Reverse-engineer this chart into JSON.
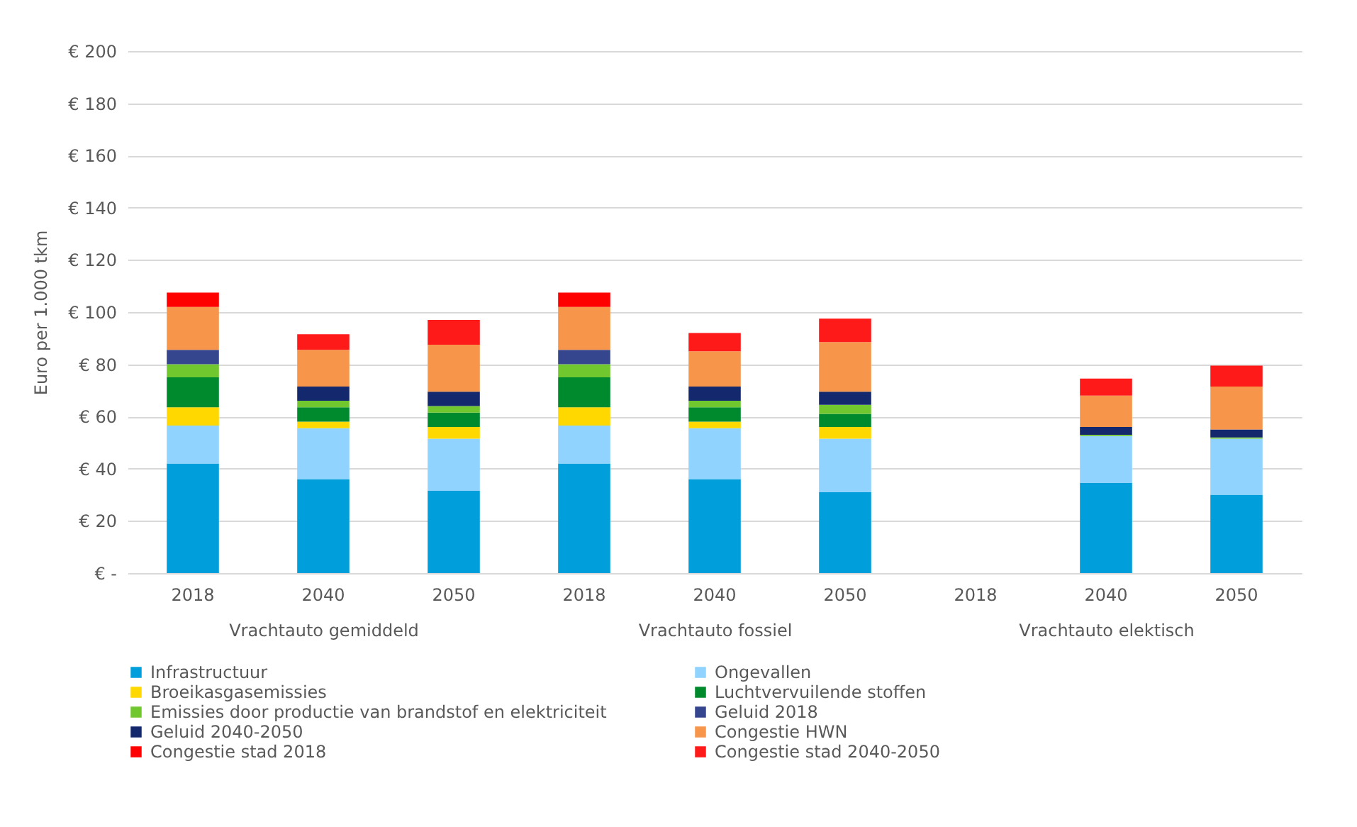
{
  "chart_data": [
    {
      "type": "bar",
      "stacked": true,
      "categories": [
        "2018",
        "2040",
        "2050"
      ],
      "xlabel": "Vrachtauto gemiddeld",
      "ylabel": "Euro per 1.000 tkm",
      "ylim": [
        0,
        200
      ],
      "yticks": [
        {
          "value": 0,
          "label": "€ -"
        },
        {
          "value": 20,
          "label": "€ 20"
        },
        {
          "value": 40,
          "label": "€ 40"
        },
        {
          "value": 60,
          "label": "€ 60"
        },
        {
          "value": 80,
          "label": "€ 80"
        },
        {
          "value": 100,
          "label": "€ 100"
        },
        {
          "value": 120,
          "label": "€ 120"
        },
        {
          "value": 140,
          "label": "€ 140"
        },
        {
          "value": 160,
          "label": "€ 160"
        },
        {
          "value": 180,
          "label": "€ 180"
        },
        {
          "value": 200,
          "label": "€ 200"
        }
      ],
      "grid": "y",
      "legend": "bottom",
      "series": [
        {
          "name": "Infrastructuur",
          "color": "#009fdb",
          "values": [
            42,
            36,
            31.5
          ]
        },
        {
          "name": "Ongevallen",
          "color": "#8fd3fe",
          "values": [
            14.5,
            19.5,
            20
          ]
        },
        {
          "name": "Broeikasgasemissies",
          "color": "#ffd800",
          "values": [
            7,
            2.5,
            4.5
          ]
        },
        {
          "name": "Luchtvervuilende stoffen",
          "color": "#008a2e",
          "values": [
            11.5,
            5.5,
            5.5
          ]
        },
        {
          "name": "Emissies door productie van brandstof en elektriciteit",
          "color": "#70c72e",
          "values": [
            5,
            2.5,
            2.5
          ]
        },
        {
          "name": "Geluid 2018",
          "color": "#35468f",
          "values": [
            5.5,
            null,
            null
          ]
        },
        {
          "name": "Geluid 2040-2050",
          "color": "#14286e",
          "values": [
            null,
            5.5,
            5.5
          ]
        },
        {
          "name": "Congestie HWN",
          "color": "#f7964a",
          "values": [
            16.5,
            14,
            18
          ]
        },
        {
          "name": "Congestie stad 2018",
          "color": "#ff0000",
          "values": [
            5.5,
            null,
            null
          ]
        },
        {
          "name": "Congestie stad 2040-2050",
          "color": "#ff1a1a",
          "values": [
            null,
            6,
            9.5
          ]
        }
      ]
    },
    {
      "type": "bar",
      "stacked": true,
      "categories": [
        "2018",
        "2040",
        "2050"
      ],
      "xlabel": "Vrachtauto fossiel",
      "ylim": [
        0,
        200
      ],
      "yticks": [
        0,
        20,
        40,
        60,
        80,
        100,
        120,
        140,
        160,
        180,
        200
      ],
      "tick_labels": "x",
      "grid": "y",
      "legend": "bottom",
      "series": [
        {
          "name": "Infrastructuur",
          "color": "#009fdb",
          "values": [
            42,
            36,
            31
          ]
        },
        {
          "name": "Ongevallen",
          "color": "#8fd3fe",
          "values": [
            14.5,
            19.5,
            20.5
          ]
        },
        {
          "name": "Broeikasgasemissies",
          "color": "#ffd800",
          "values": [
            7,
            2.5,
            4.5
          ]
        },
        {
          "name": "Luchtvervuilende stoffen",
          "color": "#008a2e",
          "values": [
            11.5,
            5.5,
            5
          ]
        },
        {
          "name": "Emissies door productie van brandstof en elektriciteit",
          "color": "#70c72e",
          "values": [
            5,
            2.5,
            3.5
          ]
        },
        {
          "name": "Geluid 2018",
          "color": "#35468f",
          "values": [
            5.5,
            null,
            null
          ]
        },
        {
          "name": "Geluid 2040-2050",
          "color": "#14286e",
          "values": [
            null,
            5.5,
            5
          ]
        },
        {
          "name": "Congestie HWN",
          "color": "#f7964a",
          "values": [
            16.5,
            13.5,
            19
          ]
        },
        {
          "name": "Congestie stad 2018",
          "color": "#ff0000",
          "values": [
            5.5,
            null,
            null
          ]
        },
        {
          "name": "Congestie stad 2040-2050",
          "color": "#ff1a1a",
          "values": [
            null,
            7,
            9
          ]
        }
      ]
    },
    {
      "type": "bar",
      "stacked": true,
      "categories": [
        "2018",
        "2040",
        "2050"
      ],
      "xlabel": "Vrachtauto elektisch",
      "ylim": [
        0,
        200
      ],
      "yticks": [
        0,
        20,
        40,
        60,
        80,
        100,
        120,
        140,
        160,
        180,
        200
      ],
      "tick_labels": "x",
      "grid": "y",
      "legend": "bottom",
      "series": [
        {
          "name": "Infrastructuur",
          "color": "#009fdb",
          "values": [
            null,
            34.5,
            30
          ]
        },
        {
          "name": "Ongevallen",
          "color": "#8fd3fe",
          "values": [
            null,
            18,
            21.5
          ]
        },
        {
          "name": "Broeikasgasemissies",
          "color": "#ffd800",
          "values": [
            null,
            null,
            null
          ]
        },
        {
          "name": "Luchtvervuilende stoffen",
          "color": "#008a2e",
          "values": [
            null,
            null,
            null
          ]
        },
        {
          "name": "Emissies door productie van brandstof en elektriciteit",
          "color": "#70c72e",
          "values": [
            null,
            0.5,
            0.5
          ]
        },
        {
          "name": "Geluid 2018",
          "color": "#35468f",
          "values": [
            null,
            null,
            null
          ]
        },
        {
          "name": "Geluid 2040-2050",
          "color": "#14286e",
          "values": [
            null,
            3,
            3
          ]
        },
        {
          "name": "Congestie HWN",
          "color": "#f7964a",
          "values": [
            null,
            12,
            16.5
          ]
        },
        {
          "name": "Congestie stad 2018",
          "color": "#ff0000",
          "values": [
            null,
            null,
            null
          ]
        },
        {
          "name": "Congestie stad 2040-2050",
          "color": "#ff1a1a",
          "values": [
            null,
            6.5,
            8
          ]
        }
      ]
    }
  ]
}
